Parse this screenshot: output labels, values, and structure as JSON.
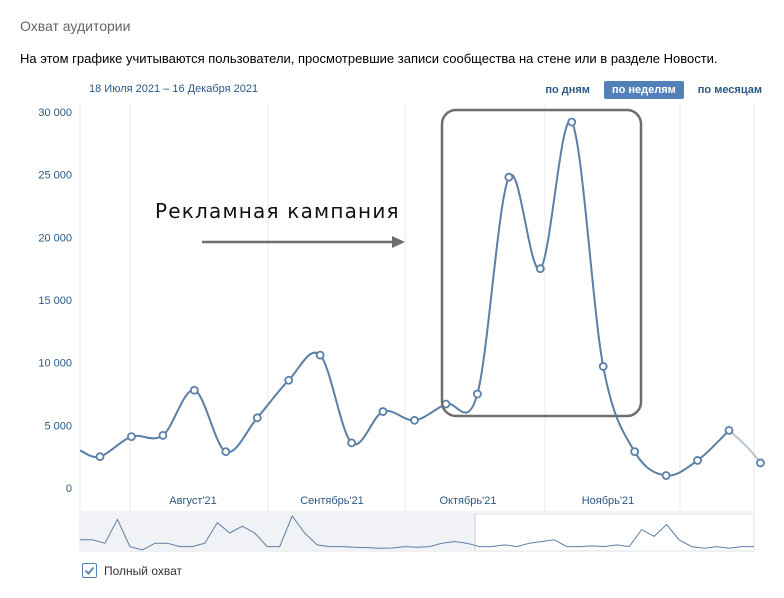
{
  "page": {
    "title": "Охват аудитории",
    "description": "На этом графике учитываются пользователи, просмотревшие записи сообщества на стене или в разделе Новости.",
    "date_range": "18 Июля 2021 – 16 Декабря 2021",
    "tabs": [
      {
        "label": "по дням",
        "active": false
      },
      {
        "label": "по неделям",
        "active": true
      },
      {
        "label": "по месяцам",
        "active": false
      }
    ],
    "annotation": "Рекламная кампания",
    "legend_label": "Полный охват",
    "legend_checked": true
  },
  "colors": {
    "line": "#5b7fa6",
    "accent": "#5181b8",
    "link": "#2a5885",
    "grid": "#e7e8ec"
  },
  "chart_data": {
    "type": "line",
    "y_ticks": [
      "30 000",
      "25 000",
      "20 000",
      "15 000",
      "10 000",
      "5 000",
      "0"
    ],
    "y_tick_values": [
      30000,
      25000,
      20000,
      15000,
      10000,
      5000,
      0
    ],
    "x_labels": [
      "Август'21",
      "Сентябрь'21",
      "Октябрь'21",
      "Ноябрь'21"
    ],
    "ylim": [
      0,
      30000
    ],
    "series": [
      {
        "name": "Полный охват",
        "values": [
          2500,
          4100,
          4200,
          7800,
          2900,
          5600,
          8600,
          10600,
          3600,
          6100,
          5400,
          6700,
          7500,
          24800,
          17500,
          29200,
          9700,
          2900,
          1000,
          2200,
          4600,
          2000
        ]
      }
    ]
  }
}
